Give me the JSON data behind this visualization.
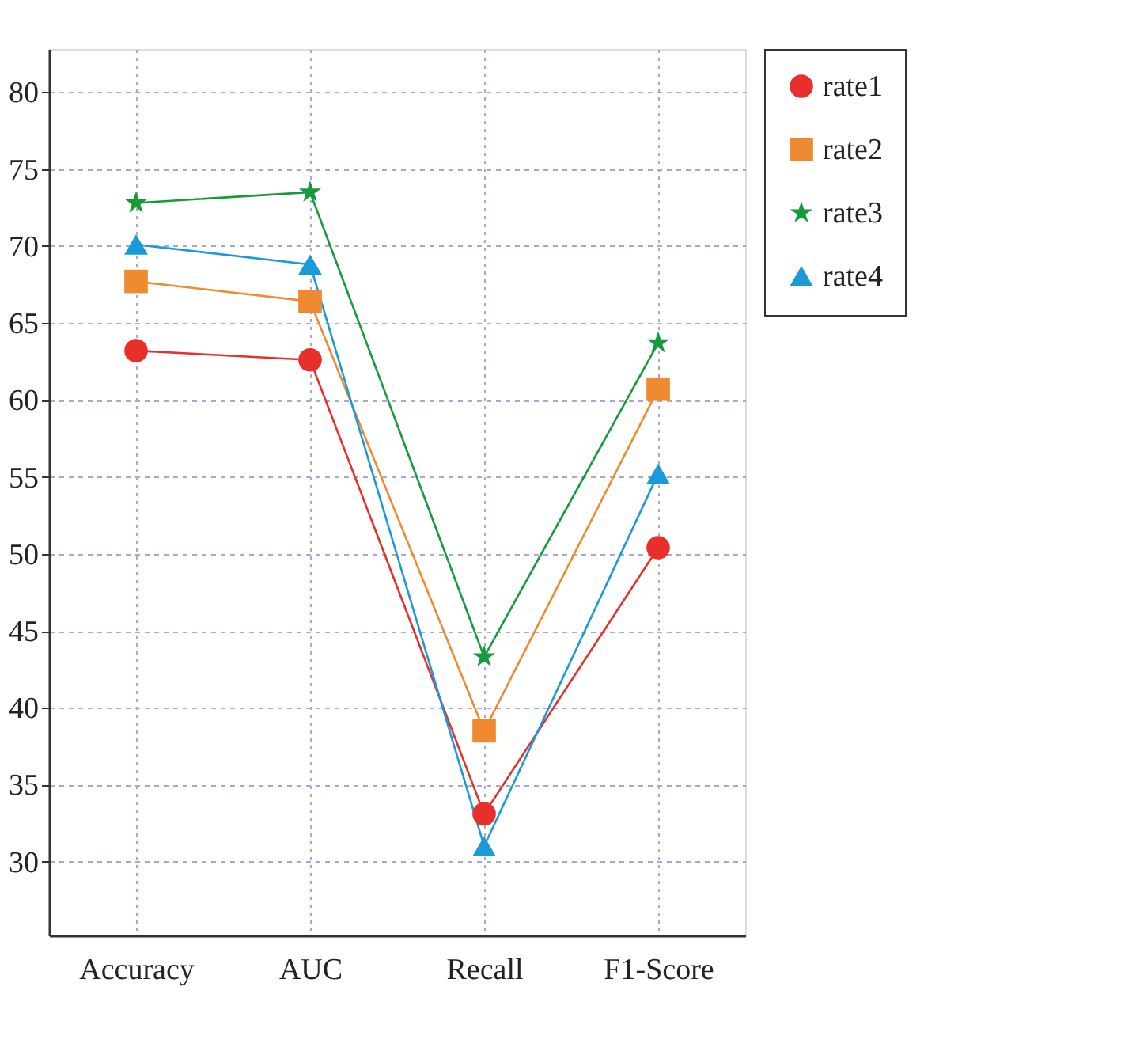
{
  "chart_data": {
    "type": "line",
    "categories": [
      "Accuracy",
      "AUC",
      "Recall",
      "F1-Score"
    ],
    "series": [
      {
        "name": "rate1",
        "color": "#e8302a",
        "marker": "circle",
        "values": [
          63.2,
          62.6,
          33.1,
          50.4
        ]
      },
      {
        "name": "rate2",
        "color": "#f08a30",
        "marker": "square",
        "values": [
          67.7,
          66.4,
          38.5,
          60.7
        ]
      },
      {
        "name": "rate3",
        "color": "#159a3c",
        "marker": "star",
        "values": [
          72.8,
          73.5,
          43.3,
          63.7
        ]
      },
      {
        "name": "rate4",
        "color": "#1a9ad6",
        "marker": "triangle",
        "values": [
          70.1,
          68.8,
          31.0,
          55.2
        ]
      }
    ],
    "ylim": [
      25.2,
      82.8
    ],
    "yticks": [
      30,
      35,
      40,
      45,
      50,
      55,
      60,
      65,
      70,
      75,
      80
    ],
    "grid": true,
    "legend": "top right",
    "line_style": "solid"
  }
}
